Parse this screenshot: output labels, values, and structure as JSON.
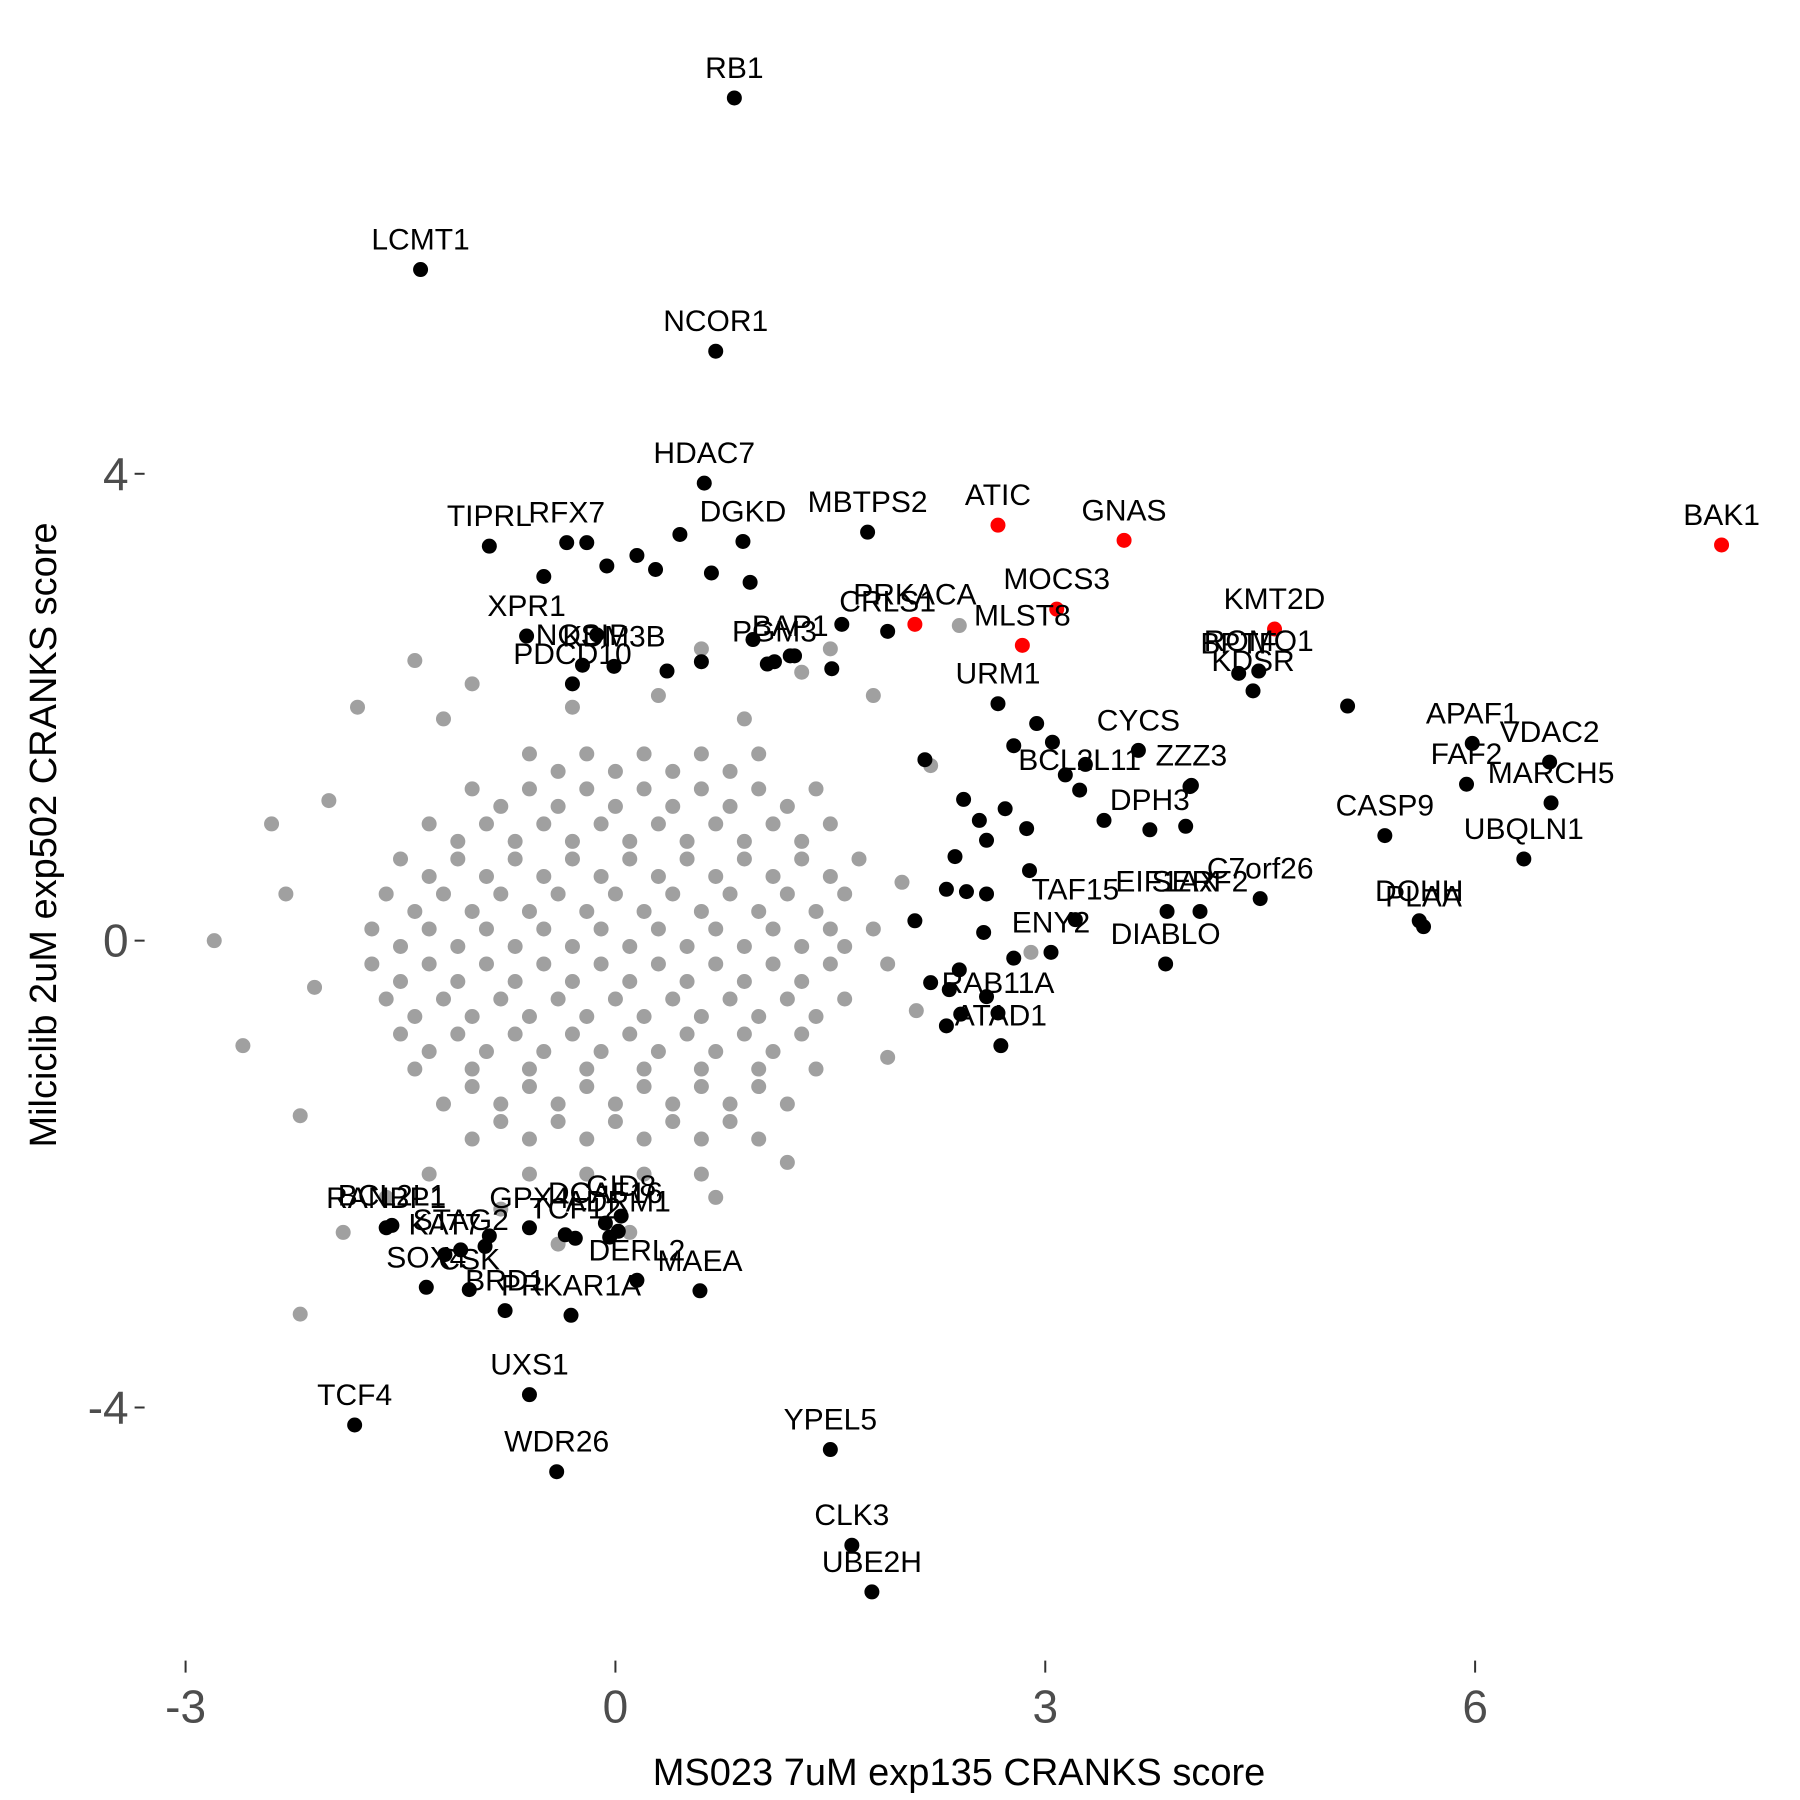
{
  "chart_data": {
    "type": "scatter",
    "x_label": "MS023 7uM exp135 CRANKS score",
    "y_label": "Milciclib 2uM exp502 CRANKS score",
    "xlim": [
      -3.3,
      8.1
    ],
    "ylim": [
      -6.1,
      7.9
    ],
    "xticks": [
      -3,
      0,
      3,
      6
    ],
    "yticks": [
      -4,
      0,
      4
    ],
    "grid": false,
    "series": [
      {
        "color": "#a0a0a0",
        "x": [
          -0.6,
          -0.2,
          0.2,
          0.6,
          1.0,
          -0.4,
          0,
          0.4,
          0.8,
          -1.0,
          -0.6,
          -0.2,
          0.2,
          0.6,
          1.0,
          1.4,
          -0.8,
          -0.4,
          0,
          0.4,
          0.8,
          1.2,
          -1.3,
          -0.9,
          -0.5,
          -0.1,
          0.3,
          0.7,
          1.1,
          1.5,
          -1.1,
          -0.7,
          -0.3,
          0.1,
          0.5,
          0.9,
          1.3,
          -1.5,
          -1.1,
          -0.7,
          -0.3,
          0.1,
          0.5,
          0.9,
          1.3,
          1.7,
          -1.3,
          -0.9,
          -0.5,
          -0.1,
          0.3,
          0.7,
          1.1,
          1.5,
          -1.6,
          -1.2,
          -0.8,
          -0.4,
          0,
          0.4,
          0.8,
          1.2,
          1.6,
          -1.4,
          -1.0,
          -0.6,
          -0.2,
          0.2,
          0.6,
          1.0,
          1.4,
          -1.7,
          -1.3,
          -0.9,
          -0.5,
          -0.1,
          0.3,
          0.7,
          1.1,
          1.5,
          1.8,
          -1.5,
          -1.1,
          -0.7,
          -0.3,
          0.1,
          0.5,
          0.9,
          1.3,
          1.6,
          -1.7,
          -1.3,
          -0.9,
          -0.5,
          -0.1,
          0.3,
          0.7,
          1.1,
          1.5,
          -1.5,
          -1.1,
          -0.7,
          -0.3,
          0.1,
          0.5,
          0.9,
          1.3,
          -1.6,
          -1.2,
          -0.8,
          -0.4,
          0,
          0.4,
          0.8,
          1.2,
          1.6,
          -1.4,
          -1.0,
          -0.6,
          -0.2,
          0.2,
          0.6,
          1.0,
          1.4,
          -1.5,
          -1.1,
          -0.7,
          -0.3,
          0.1,
          0.5,
          0.9,
          1.3,
          -1.3,
          -0.9,
          -0.5,
          -0.1,
          0.3,
          0.7,
          1.1,
          -1.4,
          -1.0,
          -0.6,
          -0.2,
          0.2,
          0.6,
          1.0,
          1.4,
          -1.0,
          -0.6,
          -0.2,
          0.2,
          0.6,
          1.0,
          -1.2,
          -0.8,
          -0.4,
          0,
          0.4,
          0.8,
          1.2,
          -0.8,
          -0.4,
          0,
          0.4,
          0.8,
          -1.0,
          -0.6,
          -0.2,
          0.2,
          0.6,
          1.0,
          -0.6,
          -0.2,
          0.2,
          0.6,
          -2.8,
          -2.6,
          -2.3,
          -2.2,
          -2.0,
          -1.9,
          -2.1,
          -1.8,
          -1.4,
          -1.2,
          -1.0,
          -1.6,
          -2.2,
          -1.3,
          -0.8,
          -0.4,
          0.1,
          0.7,
          1.2,
          1.9,
          2.1,
          2.0,
          2.2,
          1.8,
          1.3,
          0.6,
          2.4,
          1.9,
          -2.4,
          2.9,
          1.5,
          -0.3,
          0.3,
          0.9
        ],
        "values": [
          1.6,
          1.6,
          1.6,
          1.6,
          1.6,
          1.45,
          1.45,
          1.45,
          1.45,
          1.3,
          1.3,
          1.3,
          1.3,
          1.3,
          1.3,
          1.3,
          1.15,
          1.15,
          1.15,
          1.15,
          1.15,
          1.15,
          1.0,
          1.0,
          1.0,
          1.0,
          1.0,
          1.0,
          1.0,
          1.0,
          0.85,
          0.85,
          0.85,
          0.85,
          0.85,
          0.85,
          0.85,
          0.7,
          0.7,
          0.7,
          0.7,
          0.7,
          0.7,
          0.7,
          0.7,
          0.7,
          0.55,
          0.55,
          0.55,
          0.55,
          0.55,
          0.55,
          0.55,
          0.55,
          0.4,
          0.4,
          0.4,
          0.4,
          0.4,
          0.4,
          0.4,
          0.4,
          0.4,
          0.25,
          0.25,
          0.25,
          0.25,
          0.25,
          0.25,
          0.25,
          0.25,
          0.1,
          0.1,
          0.1,
          0.1,
          0.1,
          0.1,
          0.1,
          0.1,
          0.1,
          0.1,
          -0.05,
          -0.05,
          -0.05,
          -0.05,
          -0.05,
          -0.05,
          -0.05,
          -0.05,
          -0.05,
          -0.2,
          -0.2,
          -0.2,
          -0.2,
          -0.2,
          -0.2,
          -0.2,
          -0.2,
          -0.2,
          -0.35,
          -0.35,
          -0.35,
          -0.35,
          -0.35,
          -0.35,
          -0.35,
          -0.35,
          -0.5,
          -0.5,
          -0.5,
          -0.5,
          -0.5,
          -0.5,
          -0.5,
          -0.5,
          -0.5,
          -0.65,
          -0.65,
          -0.65,
          -0.65,
          -0.65,
          -0.65,
          -0.65,
          -0.65,
          -0.8,
          -0.8,
          -0.8,
          -0.8,
          -0.8,
          -0.8,
          -0.8,
          -0.8,
          -0.95,
          -0.95,
          -0.95,
          -0.95,
          -0.95,
          -0.95,
          -0.95,
          -1.1,
          -1.1,
          -1.1,
          -1.1,
          -1.1,
          -1.1,
          -1.1,
          -1.1,
          -1.25,
          -1.25,
          -1.25,
          -1.25,
          -1.25,
          -1.25,
          -1.4,
          -1.4,
          -1.4,
          -1.4,
          -1.4,
          -1.4,
          -1.4,
          -1.55,
          -1.55,
          -1.55,
          -1.55,
          -1.55,
          -1.7,
          -1.7,
          -1.7,
          -1.7,
          -1.7,
          -1.7,
          -2.0,
          -2.0,
          -2.0,
          -2.0,
          0,
          -0.9,
          0.4,
          -1.5,
          1.2,
          -2.5,
          -0.4,
          2.0,
          2.4,
          1.9,
          2.2,
          -2.2,
          -3.2,
          -2.0,
          -2.3,
          -2.6,
          -2.5,
          -2.2,
          -1.9,
          -1.0,
          -0.6,
          0.5,
          1.5,
          2.1,
          2.3,
          2.5,
          2.7,
          -0.2,
          1.0,
          -0.1,
          2.5,
          2.0,
          2.1,
          1.9
        ]
      },
      {
        "color": "#000000",
        "x": [
          -0.5,
          -0.2,
          0.15,
          -0.06,
          0.28,
          0.45,
          0.67,
          0.94,
          -0.13,
          0.36,
          0.6,
          0.96,
          1.06,
          1.25,
          1.51,
          1.58,
          2.16,
          2.43,
          2.54,
          2.78,
          2.94,
          3.05,
          3.14,
          3.28,
          2.87,
          2.59,
          2.45,
          2.31,
          2.09,
          2.57,
          2.78,
          2.4,
          2.2,
          2.33,
          2.59,
          2.41,
          2.31,
          2.89,
          3.41,
          3.98,
          4.01,
          5.11,
          2.37,
          2.72,
          2.59,
          -0.91,
          -0.88,
          -0.04,
          -0.35
        ],
        "values": [
          3.12,
          3.41,
          3.3,
          3.21,
          3.18,
          3.48,
          3.15,
          3.07,
          2.62,
          2.31,
          2.39,
          2.58,
          2.37,
          2.44,
          2.33,
          2.71,
          1.55,
          1.21,
          1.03,
          1.67,
          1.86,
          1.7,
          1.42,
          1.51,
          0.96,
          0.4,
          0.42,
          0.44,
          0.17,
          0.07,
          -0.15,
          -0.25,
          -0.36,
          -0.42,
          -0.48,
          -0.63,
          -0.73,
          0.6,
          1.03,
          0.98,
          1.32,
          2.01,
          0.72,
          1.13,
          0.86,
          -2.62,
          -2.53,
          -2.54,
          -2.52
        ]
      },
      {
        "color": "#000000",
        "labels": [
          "RB1",
          "LCMT1",
          "NCOR1",
          "HDAC7",
          "MBTPS2",
          "DGKD",
          "TIPRL",
          "RFX7",
          "XPR1",
          "BPTF",
          "ROMO1",
          "KDSR",
          "CRLS1",
          "NOSIP",
          "PDCD10",
          "KDM3B",
          "BAP1",
          "PGM3",
          "URM1",
          "CYCS",
          "APAF1",
          "FAF2",
          "VDAC2",
          "MARCH5",
          "CASP9",
          "UBQLN1",
          "DOHH",
          "PLAA",
          "BCL2L11",
          "ZZZ3",
          "C7orf26",
          "DPH3",
          "SERF2",
          "EIF1AX",
          "DIABLO",
          "TAF15",
          "ENY2",
          "ATAD1",
          "RAB11A",
          "BCL2L1",
          "RANBP1",
          "KAT7",
          "STAG2",
          "GPX4",
          "DCAF16",
          "GID8",
          "ADRM1",
          "SOX4",
          "CSK",
          "DERL2",
          "MAEA",
          "BRD1",
          "TCF12",
          "PRKAR1A",
          "UXS1",
          "TCF4",
          "WDR26",
          "YPEL5",
          "CLK3",
          "UBE2H"
        ],
        "x": [
          0.83,
          -1.36,
          0.7,
          0.62,
          1.76,
          0.89,
          -0.88,
          -0.34,
          -0.62,
          4.35,
          4.49,
          4.45,
          1.9,
          -0.23,
          -0.3,
          -0.01,
          1.22,
          1.11,
          2.67,
          3.65,
          5.98,
          5.94,
          6.52,
          6.53,
          5.37,
          6.34,
          5.61,
          5.64,
          3.24,
          4.02,
          4.5,
          3.73,
          4.08,
          3.85,
          3.84,
          3.21,
          3.04,
          2.69,
          2.67,
          -1.56,
          -1.6,
          -1.19,
          -1.08,
          -0.6,
          -0.07,
          0.04,
          0.02,
          -1.32,
          -1.02,
          0.15,
          0.59,
          -0.77,
          -0.28,
          -0.31,
          -0.6,
          -1.82,
          -0.41,
          1.5,
          1.65,
          1.79
        ],
        "values": [
          7.22,
          5.75,
          5.05,
          3.92,
          3.5,
          3.42,
          3.38,
          3.41,
          2.61,
          2.29,
          2.31,
          2.14,
          2.65,
          2.36,
          2.2,
          2.35,
          2.44,
          2.39,
          2.03,
          1.63,
          1.69,
          1.34,
          1.53,
          1.18,
          0.9,
          0.7,
          0.17,
          0.12,
          1.29,
          1.33,
          0.36,
          0.95,
          0.25,
          0.25,
          -0.2,
          0.18,
          -0.1,
          -0.9,
          -0.62,
          -2.44,
          -2.46,
          -2.69,
          -2.65,
          -2.46,
          -2.42,
          -2.36,
          -2.49,
          -2.97,
          -2.99,
          -2.91,
          -3.0,
          -3.17,
          -2.55,
          -3.21,
          -3.89,
          -4.15,
          -4.55,
          -4.36,
          -5.18,
          -5.58
        ]
      },
      {
        "color": "#ff0000",
        "labels": [
          "ATIC",
          "GNAS",
          "BAK1",
          "MOCS3",
          "KMT2D",
          "PRKACA",
          "MLST8"
        ],
        "x": [
          2.67,
          3.55,
          7.72,
          3.08,
          4.6,
          2.09,
          2.84
        ],
        "values": [
          3.56,
          3.43,
          3.39,
          2.84,
          2.67,
          2.71,
          2.53
        ]
      }
    ]
  }
}
